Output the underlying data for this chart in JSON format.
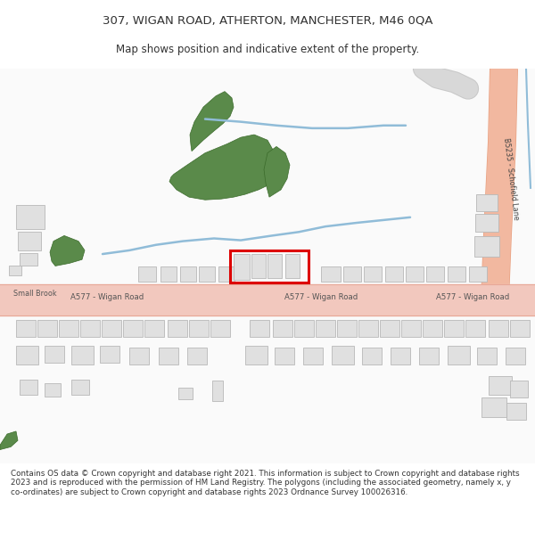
{
  "title_line1": "307, WIGAN ROAD, ATHERTON, MANCHESTER, M46 0QA",
  "title_line2": "Map shows position and indicative extent of the property.",
  "bg_color": "#ffffff",
  "road_color": "#f2c8be",
  "road_border": "#e8a898",
  "green_color": "#5a8a4a",
  "building_color": "#e0e0e0",
  "building_border": "#b8b8b8",
  "water_color": "#90bcd8",
  "red_box_color": "#dd0000",
  "road_label_color": "#555555",
  "text_color": "#333333",
  "b5235_road_color": "#f2b8a0",
  "footer_lines": [
    "Contains OS data © Crown copyright and database right 2021. This information is subject to Crown copyright and database rights 2023 and is reproduced with the permission of",
    "HM Land Registry. The polygons (including the associated geometry, namely x, y co-ordinates) are subject to Crown copyright and database rights 2023 Ordnance Survey 100026316."
  ]
}
